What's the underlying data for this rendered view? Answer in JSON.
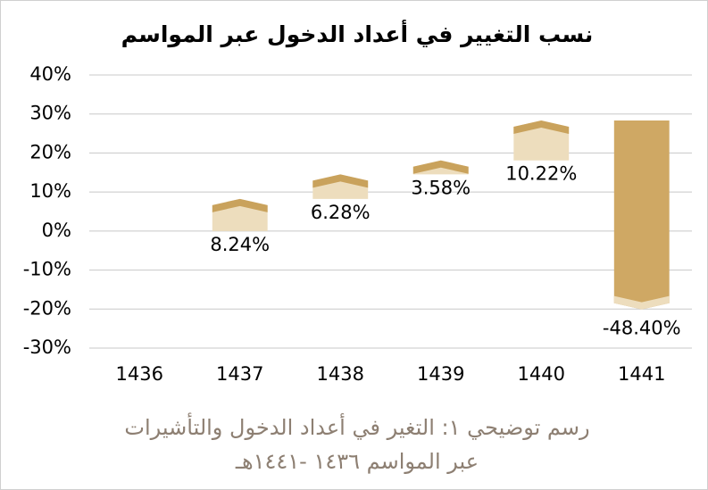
{
  "chart_data": {
    "type": "waterfall",
    "title": "نسب التغيير في أعداد الدخول عبر المواسم",
    "caption": [
      "رسم توضيحي ١: التغير في أعداد الدخول والتأشيرات",
      "عبر المواسم ١٤٣٦ -١٤٤١هـ"
    ],
    "categories": [
      "1436",
      "1437",
      "1438",
      "1439",
      "1440",
      "1441"
    ],
    "values": [
      null,
      8.24,
      6.28,
      3.58,
      10.22,
      -48.4
    ],
    "value_labels": [
      null,
      "8.24%",
      "6.28%",
      "3.58%",
      "10.22%",
      "-48.40%"
    ],
    "color_increase": "#edddbd",
    "color_decrease": "#cfa864",
    "color_cap": "#c9a25c",
    "ylim": [
      -30,
      40
    ],
    "yticks": [
      {
        "value": -30,
        "label": "-30%"
      },
      {
        "value": -20,
        "label": "-20%"
      },
      {
        "value": -10,
        "label": "-10%"
      },
      {
        "value": 0,
        "label": "0%"
      },
      {
        "value": 10,
        "label": "10%"
      },
      {
        "value": 20,
        "label": "20%"
      },
      {
        "value": 30,
        "label": "30%"
      },
      {
        "value": 40,
        "label": "40%"
      }
    ],
    "grid": true
  }
}
